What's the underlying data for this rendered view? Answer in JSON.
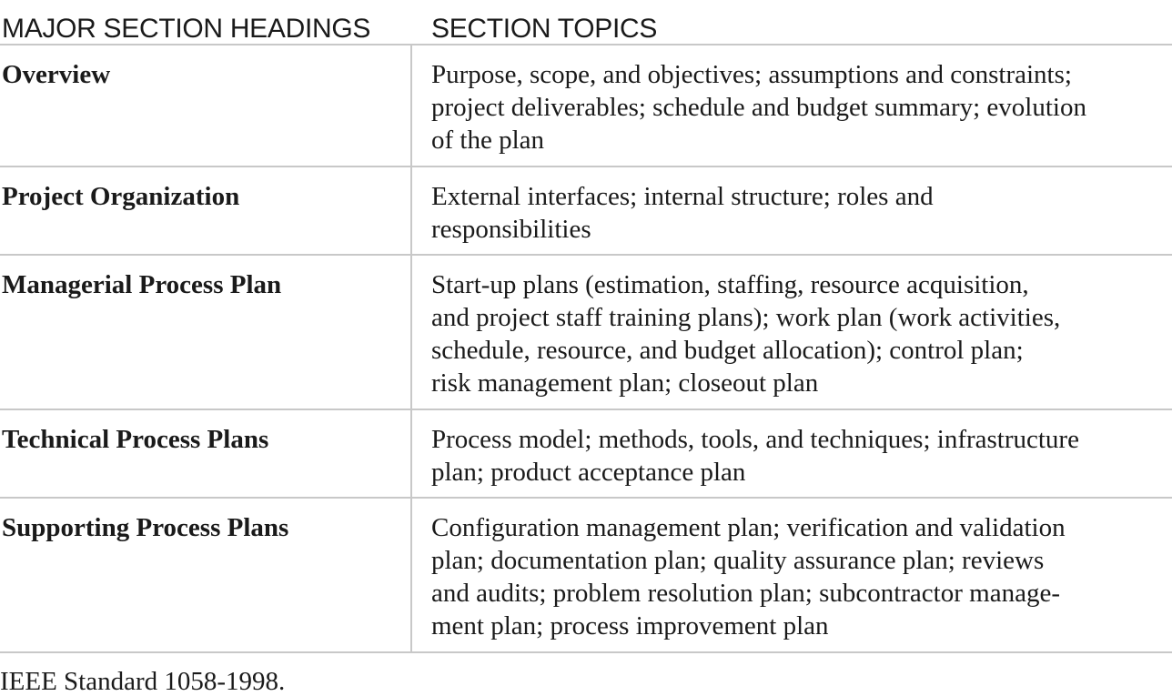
{
  "table": {
    "headers": {
      "col1": "MAJOR SECTION HEADINGS",
      "col2": "SECTION TOPICS"
    },
    "rows": [
      {
        "heading": "Overview",
        "topic_lines": [
          "Purpose, scope, and objectives; assumptions and constraints;",
          "project deliverables; schedule and budget summary; evolution",
          "of the plan"
        ]
      },
      {
        "heading": "Project Organization",
        "topic_lines": [
          "External interfaces; internal structure; roles and",
          "responsibilities"
        ]
      },
      {
        "heading": "Managerial Process Plan",
        "topic_lines": [
          "Start-up plans (estimation, staffing, resource acquisition,",
          "and project staff training plans); work plan (work activities,",
          "schedule, resource, and budget allocation); control plan;",
          "risk management plan; closeout plan"
        ]
      },
      {
        "heading": "Technical Process Plans",
        "topic_lines": [
          "Process model; methods, tools, and techniques; infrastructure",
          "plan; product acceptance plan"
        ]
      },
      {
        "heading": "Supporting Process Plans",
        "topic_lines": [
          "Configuration management plan; verification and validation",
          "plan; documentation plan; quality assurance plan; reviews",
          "and audits; problem resolution plan; subcontractor manage-",
          "ment plan; process improvement plan"
        ]
      }
    ]
  },
  "source": "IEEE Standard 1058-1998."
}
